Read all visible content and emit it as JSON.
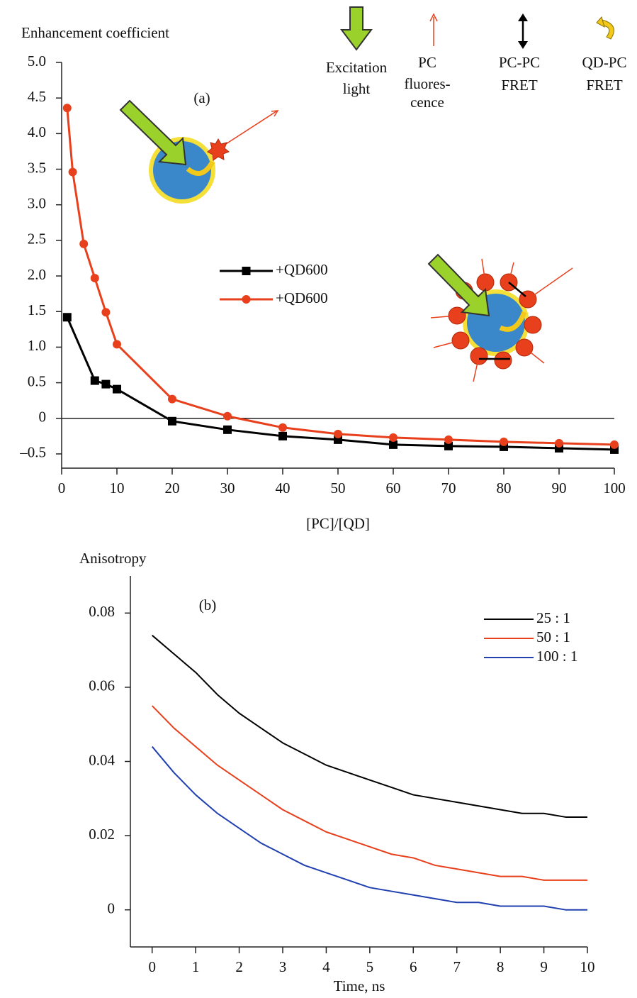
{
  "chart_data": [
    {
      "type": "line",
      "ylabel": "Enhancement coefficient",
      "xlabel": "[PC]/[QD]",
      "panel_label": "(a)",
      "icon_labels": [
        [
          "Excitation",
          "light"
        ],
        [
          "PC",
          "fluores-",
          "cence"
        ],
        [
          "PC-PC",
          "FRET"
        ],
        [
          "QD-PC",
          "FRET"
        ]
      ],
      "xlim": [
        0,
        100
      ],
      "xticks": [
        0,
        10,
        20,
        30,
        40,
        50,
        60,
        70,
        80,
        90,
        100
      ],
      "ylim": [
        -0.7,
        5.0
      ],
      "yticks": [
        {
          "value": -0.5,
          "label": "–0.5"
        },
        0,
        0.5,
        {
          "value": 1,
          "label": "1.0"
        },
        1.5,
        {
          "value": 2,
          "label": "2.0"
        },
        2.5,
        {
          "value": 3,
          "label": "3.0"
        },
        3.5,
        {
          "value": 4,
          "label": "4.0"
        },
        4.5,
        {
          "value": 5,
          "label": "5.0"
        }
      ],
      "zero_line": true,
      "series": [
        {
          "name": "+QD600",
          "color": "#000000",
          "marker": "square",
          "x": [
            1,
            6,
            8,
            10,
            20,
            30,
            40,
            50,
            60,
            70,
            80,
            90,
            100
          ],
          "values": [
            1.42,
            0.53,
            0.48,
            0.41,
            -0.04,
            -0.16,
            -0.25,
            -0.3,
            -0.37,
            -0.39,
            -0.4,
            -0.42,
            -0.44
          ]
        },
        {
          "name": "+QD600",
          "color": "#e8401c",
          "marker": "circle",
          "x": [
            1,
            2,
            4,
            6,
            8,
            10,
            20,
            30,
            40,
            50,
            60,
            70,
            80,
            90,
            100
          ],
          "values": [
            4.36,
            3.46,
            2.45,
            1.97,
            1.49,
            1.04,
            0.27,
            0.03,
            -0.13,
            -0.22,
            -0.27,
            -0.3,
            -0.33,
            -0.35,
            -0.37
          ]
        }
      ]
    },
    {
      "type": "line",
      "ylabel": "Anisotropy",
      "xlabel": "Time, ns",
      "panel_label": "(b)",
      "xlim": [
        -0.5,
        10
      ],
      "xticks": [
        0,
        1,
        2,
        3,
        4,
        5,
        6,
        7,
        8,
        9,
        10
      ],
      "ylim": [
        -0.01,
        0.09
      ],
      "yticks": [
        0,
        0.02,
        0.04,
        0.06,
        0.08
      ],
      "x": [
        0,
        0.5,
        1,
        1.5,
        2,
        2.5,
        3,
        3.5,
        4,
        4.5,
        5,
        5.5,
        6,
        6.5,
        7,
        7.5,
        8,
        8.5,
        9,
        9.5,
        10
      ],
      "series": [
        {
          "name": "25 : 1",
          "color": "#000000",
          "values": [
            0.074,
            0.069,
            0.064,
            0.058,
            0.053,
            0.049,
            0.045,
            0.042,
            0.039,
            0.037,
            0.035,
            0.033,
            0.031,
            0.03,
            0.029,
            0.028,
            0.027,
            0.026,
            0.026,
            0.025,
            0.025
          ]
        },
        {
          "name": "50 : 1",
          "color": "#e8401c",
          "values": [
            0.055,
            0.049,
            0.044,
            0.039,
            0.035,
            0.031,
            0.027,
            0.024,
            0.021,
            0.019,
            0.017,
            0.015,
            0.014,
            0.012,
            0.011,
            0.01,
            0.009,
            0.009,
            0.008,
            0.008,
            0.008
          ]
        },
        {
          "name": "100 : 1",
          "color": "#2040b0",
          "values": [
            0.044,
            0.037,
            0.031,
            0.026,
            0.022,
            0.018,
            0.015,
            0.012,
            0.01,
            0.008,
            0.006,
            0.005,
            0.004,
            0.003,
            0.002,
            0.002,
            0.001,
            0.001,
            0.001,
            0,
            0
          ]
        }
      ]
    }
  ]
}
